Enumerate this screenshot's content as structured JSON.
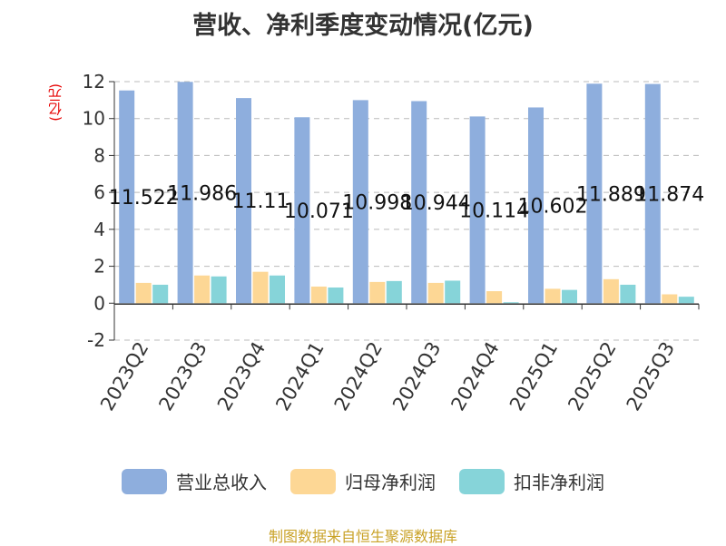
{
  "chart_data": {
    "type": "bar",
    "title": "营收、净利季度变动情况(亿元)",
    "ylabel": "(亿元)",
    "ylim": [
      -2,
      12
    ],
    "yticks": [
      -2,
      0,
      2,
      4,
      6,
      8,
      10,
      12
    ],
    "categories": [
      "2023Q2",
      "2023Q3",
      "2023Q4",
      "2024Q1",
      "2024Q2",
      "2024Q3",
      "2024Q4",
      "2025Q1",
      "2025Q2",
      "2025Q3"
    ],
    "series": [
      {
        "name": "营业总收入",
        "color": "#8eaedd",
        "values": [
          11.522,
          11.986,
          11.11,
          10.071,
          10.998,
          10.944,
          10.114,
          10.602,
          11.889,
          11.874
        ],
        "labels": [
          "11.522",
          "11.986",
          "11.11",
          "10.071",
          "10.998",
          "10.944",
          "10.114",
          "10.602",
          "11.889",
          "11.874"
        ]
      },
      {
        "name": "归母净利润",
        "color": "#fdd795",
        "values": [
          1.1,
          1.5,
          1.7,
          0.9,
          1.15,
          1.1,
          0.65,
          0.78,
          1.3,
          0.48
        ]
      },
      {
        "name": "扣非净利润",
        "color": "#86d4d9",
        "values": [
          1.0,
          1.45,
          1.5,
          0.85,
          1.2,
          1.22,
          0.05,
          0.72,
          1.0,
          0.35
        ]
      }
    ],
    "grid": true,
    "legend_position": "bottom"
  },
  "footer": {
    "source": "制图数据来自恒生聚源数据库"
  }
}
